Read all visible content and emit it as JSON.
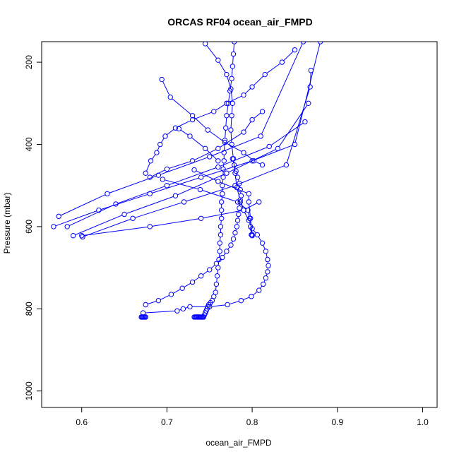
{
  "chart_data": {
    "type": "line",
    "title": "ORCAS RF04 ocean_air_FMPD",
    "xlabel": "ocean_air_FMPD",
    "ylabel": "Pressure (mbar)",
    "xlim": [
      0.553,
      1.017
    ],
    "ylim": [
      1040,
      150
    ],
    "y_reversed": true,
    "x_ticks": [
      0.6,
      0.7,
      0.8,
      0.9,
      1.0
    ],
    "x_tick_labels": [
      "0.6",
      "0.7",
      "0.8",
      "0.9",
      "1.0"
    ],
    "y_ticks": [
      200,
      400,
      600,
      800,
      1000
    ],
    "y_tick_labels": [
      "200",
      "400",
      "600",
      "800",
      "1000"
    ],
    "grid": false,
    "legend": "none",
    "color": "#0000ff",
    "marker": "open-circle",
    "series": [
      {
        "x": [
          0.779,
          0.778,
          0.777,
          0.776,
          0.774,
          0.772,
          0.77,
          0.769,
          0.768,
          0.767,
          0.767,
          0.766,
          0.766,
          0.765,
          0.765,
          0.764,
          0.764,
          0.764,
          0.763,
          0.763,
          0.762,
          0.762,
          0.761,
          0.76,
          0.759,
          0.758,
          0.757,
          0.755,
          0.753,
          0.751,
          0.749,
          0.748,
          0.747,
          0.746,
          0.745,
          0.744,
          0.743,
          0.742,
          0.741,
          0.74,
          0.739,
          0.738,
          0.737,
          0.736,
          0.735,
          0.734,
          0.733,
          0.732
        ],
        "y": [
          150,
          180,
          210,
          240,
          270,
          300,
          330,
          360,
          390,
          420,
          440,
          460,
          480,
          500,
          520,
          540,
          560,
          580,
          600,
          620,
          640,
          660,
          680,
          700,
          720,
          740,
          760,
          770,
          780,
          785,
          790,
          795,
          800,
          805,
          810,
          815,
          820,
          820,
          820,
          820,
          820,
          820,
          820,
          820,
          820,
          820,
          820,
          820
        ]
      },
      {
        "x": [
          0.695,
          0.739,
          0.783,
          0.795,
          0.797,
          0.798,
          0.799,
          0.8
        ],
        "y": [
          485,
          510,
          540,
          560,
          580,
          600,
          620,
          622
        ]
      },
      {
        "x": [
          0.745,
          0.76,
          0.77,
          0.775,
          0.777,
          0.776,
          0.775,
          0.776,
          0.778,
          0.78,
          0.782,
          0.786,
          0.79,
          0.796,
          0.8,
          0.806,
          0.812,
          0.816,
          0.818,
          0.819,
          0.818,
          0.816,
          0.813,
          0.808,
          0.799,
          0.787,
          0.771,
          0.75,
          0.727,
          0.719,
          0.712,
          0.672,
          0.67,
          0.67,
          0.671,
          0.672,
          0.673,
          0.674,
          0.675
        ],
        "y": [
          155,
          195,
          230,
          265,
          300,
          330,
          365,
          400,
          435,
          470,
          505,
          535,
          560,
          585,
          605,
          620,
          640,
          660,
          680,
          695,
          710,
          725,
          740,
          755,
          770,
          780,
          790,
          795,
          795,
          800,
          805,
          810,
          820,
          820,
          820,
          820,
          820,
          820,
          820
        ]
      },
      {
        "x": [
          0.675,
          0.69,
          0.705,
          0.718,
          0.73,
          0.74,
          0.75,
          0.758,
          0.765,
          0.77,
          0.775,
          0.778,
          0.78,
          0.782,
          0.783,
          0.784,
          0.785,
          0.786,
          0.787,
          0.786,
          0.785,
          0.783,
          0.781,
          0.779,
          0.777
        ],
        "y": [
          790,
          780,
          765,
          750,
          735,
          720,
          705,
          690,
          675,
          660,
          645,
          630,
          615,
          600,
          585,
          570,
          555,
          540,
          525,
          510,
          495,
          480,
          465,
          450,
          435
        ]
      },
      {
        "x": [
          0.567,
          0.62,
          0.68,
          0.74,
          0.8,
          0.85,
          0.88
        ],
        "y": [
          600,
          560,
          520,
          480,
          440,
          400,
          150
        ]
      },
      {
        "x": [
          0.573,
          0.63,
          0.69,
          0.75,
          0.81,
          0.86
        ],
        "y": [
          575,
          520,
          475,
          430,
          380,
          150
        ]
      },
      {
        "x": [
          0.583,
          0.64,
          0.7,
          0.76,
          0.82,
          0.862
        ],
        "y": [
          600,
          545,
          500,
          455,
          405,
          345
        ]
      },
      {
        "x": [
          0.59,
          0.65,
          0.71,
          0.77,
          0.83,
          0.866
        ],
        "y": [
          622,
          570,
          525,
          470,
          410,
          300
        ]
      },
      {
        "x": [
          0.601,
          0.66,
          0.72,
          0.78,
          0.84,
          0.868,
          0.869
        ],
        "y": [
          625,
          580,
          540,
          500,
          450,
          260,
          220
        ]
      },
      {
        "x": [
          0.6,
          0.68,
          0.74,
          0.79,
          0.808
        ],
        "y": [
          622,
          600,
          580,
          560,
          540
        ]
      },
      {
        "x": [
          0.675,
          0.681,
          0.688,
          0.692,
          0.698,
          0.71,
          0.73,
          0.755,
          0.77,
          0.79,
          0.8,
          0.815,
          0.835,
          0.85
        ],
        "y": [
          470,
          440,
          420,
          400,
          380,
          360,
          340,
          320,
          300,
          280,
          260,
          230,
          200,
          170
        ]
      },
      {
        "x": [
          0.694,
          0.704,
          0.73,
          0.748,
          0.768,
          0.79,
          0.802,
          0.812
        ],
        "y": [
          242,
          285,
          330,
          365,
          395,
          420,
          440,
          450
        ]
      },
      {
        "x": [
          0.68,
          0.7,
          0.73,
          0.76,
          0.79,
          0.8,
          0.812
        ],
        "y": [
          480,
          460,
          440,
          410,
          370,
          340,
          320
        ]
      },
      {
        "x": [
          0.714,
          0.727,
          0.745,
          0.76
        ],
        "y": [
          362,
          380,
          410,
          440
        ]
      },
      {
        "x": [
          0.732,
          0.76,
          0.796,
          0.796,
          0.798,
          0.8
        ],
        "y": [
          462,
          490,
          520,
          540,
          580,
          620
        ]
      }
    ]
  }
}
